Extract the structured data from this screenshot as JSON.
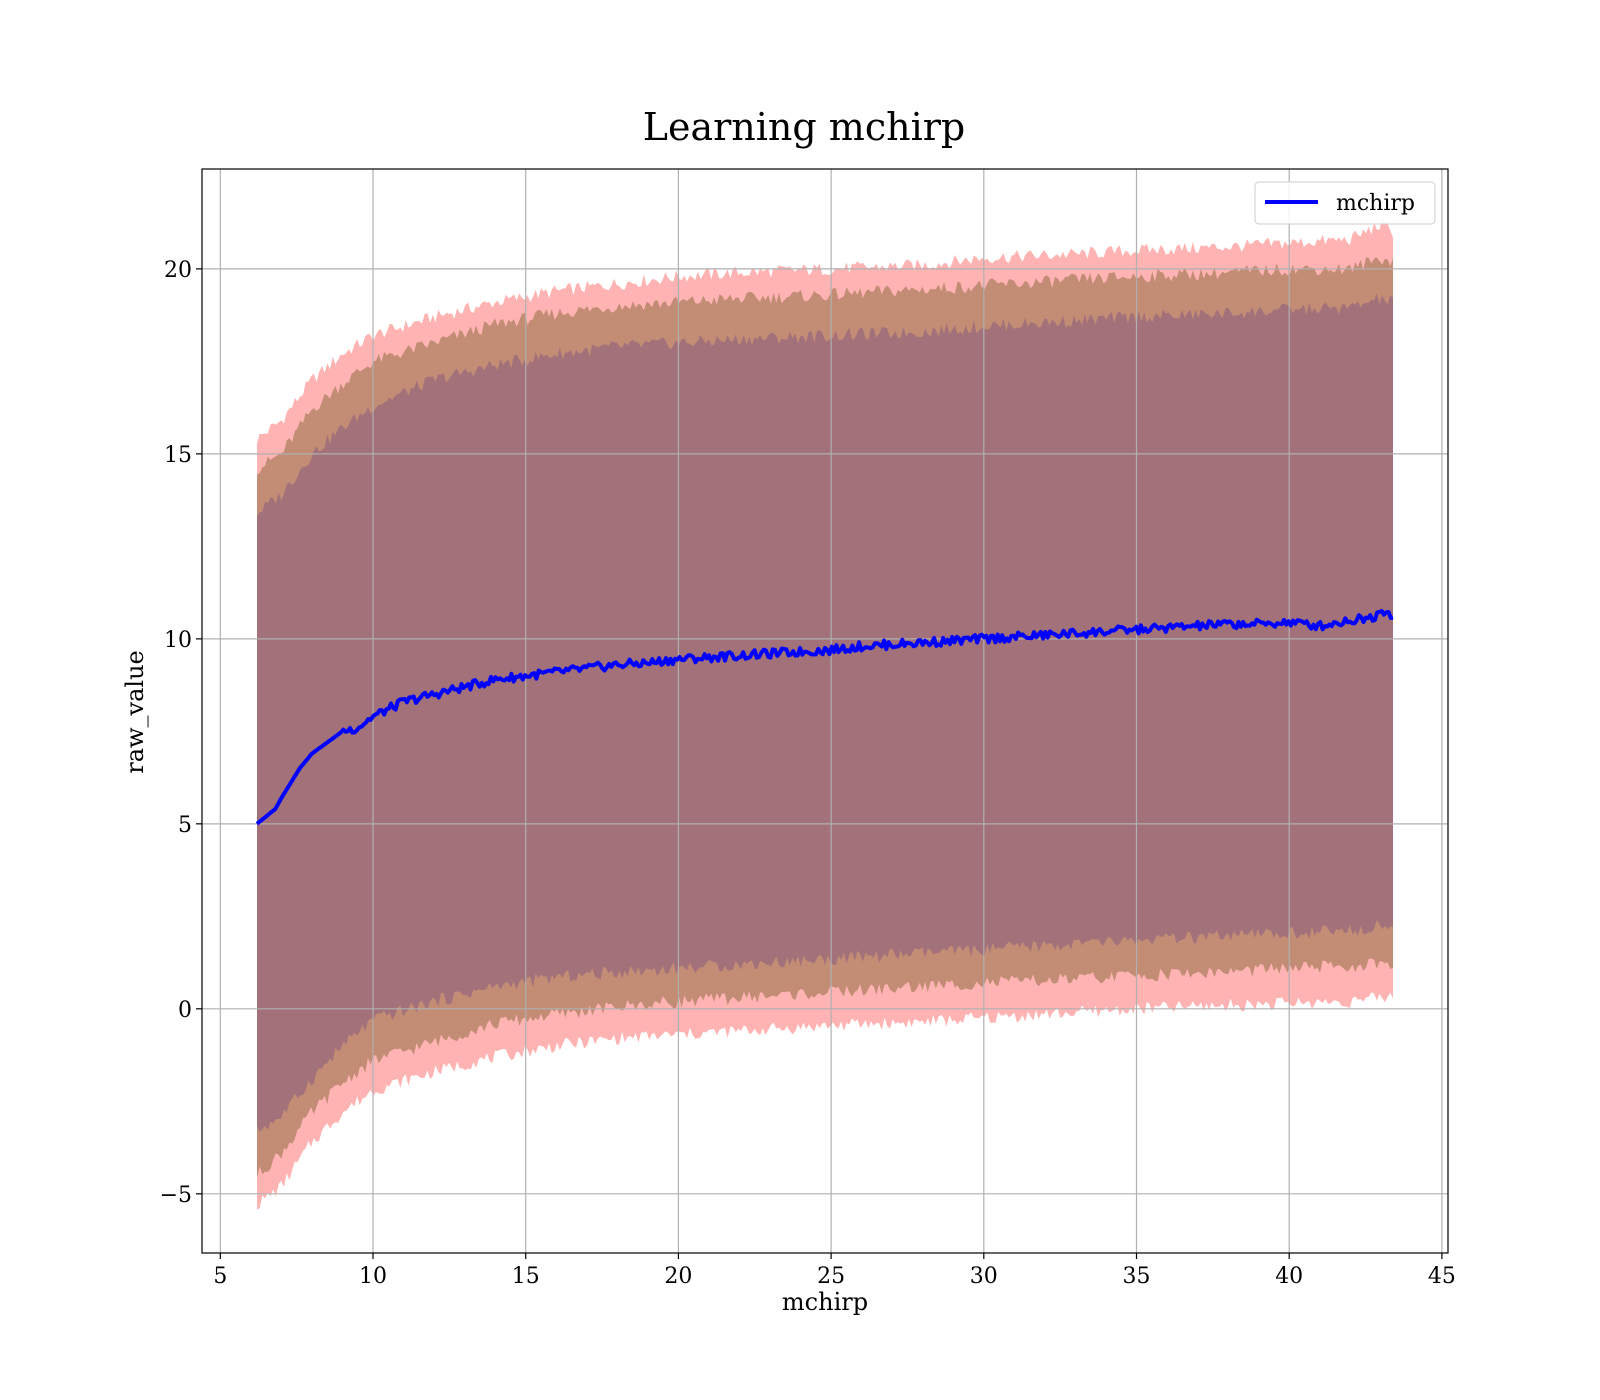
{
  "chart_data": {
    "type": "line",
    "title": "Learning mchirp",
    "xlabel": "mchirp",
    "ylabel": "raw_value",
    "xlim": [
      4.4,
      45.2
    ],
    "ylim": [
      -6.6,
      22.7
    ],
    "xticks": [
      5,
      10,
      15,
      20,
      25,
      30,
      35,
      40,
      45
    ],
    "yticks": [
      -5,
      0,
      5,
      10,
      15,
      20
    ],
    "ytick_labels": [
      "−5",
      "0",
      "5",
      "10",
      "15",
      "20"
    ],
    "grid": true,
    "legend": {
      "position": "top-right",
      "entries": [
        "mchirp"
      ]
    },
    "colors": {
      "line": "#0000ff",
      "band_outer": "#ff9999",
      "band_middle": "#b9856a",
      "band_inner": "#a0707a",
      "grid": "#b0b0b0"
    },
    "series": [
      {
        "name": "mchirp",
        "x": [
          6.2,
          6.5,
          6.8,
          7.0,
          7.3,
          7.6,
          8.0,
          8.5,
          9.0,
          9.5,
          10.0,
          10.5,
          11.0,
          12.0,
          13.0,
          14.0,
          15.0,
          16.0,
          17.0,
          18.0,
          19.0,
          20.0,
          21.0,
          22.0,
          23.0,
          24.0,
          25.0,
          26.0,
          27.0,
          28.0,
          29.0,
          30.0,
          31.0,
          32.0,
          33.0,
          34.0,
          35.0,
          36.0,
          37.0,
          38.0,
          39.0,
          40.0,
          41.0,
          42.0,
          42.8,
          43.0,
          43.4
        ],
        "y": [
          5.0,
          5.2,
          5.4,
          5.7,
          6.1,
          6.5,
          6.9,
          7.2,
          7.5,
          7.6,
          7.9,
          8.1,
          8.3,
          8.5,
          8.7,
          8.9,
          9.0,
          9.1,
          9.2,
          9.3,
          9.35,
          9.45,
          9.5,
          9.55,
          9.6,
          9.65,
          9.7,
          9.8,
          9.85,
          9.9,
          9.95,
          10.0,
          10.05,
          10.1,
          10.15,
          10.2,
          10.25,
          10.3,
          10.35,
          10.4,
          10.4,
          10.45,
          10.35,
          10.5,
          10.6,
          10.8,
          10.65
        ]
      }
    ],
    "bands": [
      {
        "x": [
          6.2,
          7.0,
          8.0,
          9.0,
          10.0,
          12.0,
          14.0,
          16.0,
          18.0,
          20.0,
          22.0,
          25.0,
          28.0,
          30.0,
          33.0,
          35.0,
          38.0,
          40.0,
          42.0,
          43.0,
          43.4
        ],
        "upper": [
          15.4,
          15.9,
          17.0,
          17.7,
          18.2,
          18.7,
          19.1,
          19.4,
          19.6,
          19.8,
          19.9,
          20.0,
          20.1,
          20.3,
          20.4,
          20.5,
          20.6,
          20.7,
          20.8,
          21.2,
          21.0
        ],
        "lower": [
          -5.3,
          -4.8,
          -3.6,
          -2.8,
          -2.2,
          -1.7,
          -1.3,
          -1.0,
          -0.8,
          -0.7,
          -0.6,
          -0.45,
          -0.35,
          -0.25,
          -0.1,
          0.0,
          0.1,
          0.15,
          0.2,
          0.3,
          0.35
        ]
      },
      {
        "x": [
          6.2,
          7.0,
          8.0,
          9.0,
          10.0,
          12.0,
          14.0,
          16.0,
          18.0,
          20.0,
          22.0,
          25.0,
          28.0,
          30.0,
          33.0,
          35.0,
          38.0,
          40.0,
          42.0,
          43.0,
          43.4
        ],
        "upper": [
          14.6,
          15.0,
          16.2,
          16.9,
          17.5,
          18.0,
          18.5,
          18.8,
          19.0,
          19.1,
          19.2,
          19.3,
          19.45,
          19.55,
          19.7,
          19.8,
          19.9,
          20.0,
          20.0,
          20.3,
          20.2
        ],
        "lower": [
          -4.5,
          -3.9,
          -2.8,
          -2.0,
          -1.4,
          -0.9,
          -0.4,
          -0.15,
          0.05,
          0.2,
          0.3,
          0.45,
          0.6,
          0.7,
          0.8,
          0.9,
          1.0,
          1.1,
          1.15,
          1.2,
          1.1
        ]
      },
      {
        "x": [
          6.2,
          7.0,
          8.0,
          9.0,
          10.0,
          12.0,
          14.0,
          16.0,
          18.0,
          20.0,
          22.0,
          25.0,
          28.0,
          30.0,
          33.0,
          35.0,
          38.0,
          40.0,
          42.0,
          43.0,
          43.4
        ],
        "upper": [
          13.4,
          13.9,
          15.0,
          15.7,
          16.3,
          17.0,
          17.4,
          17.7,
          17.9,
          18.0,
          18.1,
          18.2,
          18.3,
          18.45,
          18.6,
          18.7,
          18.8,
          18.9,
          18.95,
          19.2,
          19.1
        ],
        "lower": [
          -3.3,
          -2.9,
          -1.9,
          -1.0,
          -0.3,
          0.2,
          0.6,
          0.85,
          1.0,
          1.1,
          1.2,
          1.35,
          1.5,
          1.6,
          1.75,
          1.85,
          1.95,
          2.05,
          2.1,
          2.3,
          2.2
        ]
      }
    ]
  }
}
